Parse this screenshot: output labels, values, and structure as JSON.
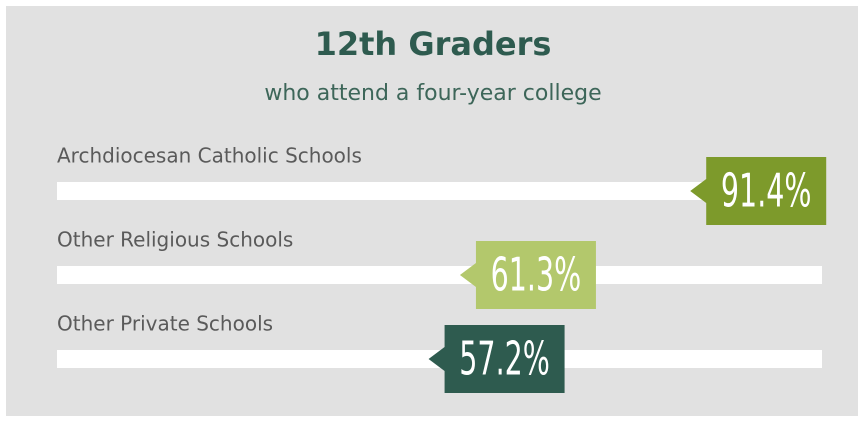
{
  "chart_data": {
    "type": "bar",
    "orientation": "horizontal",
    "title": "12th Graders",
    "subtitle": "who attend a four-year college",
    "categories": [
      "Archdiocesan Catholic Schools",
      "Other Religious Schools",
      "Other Private Schools"
    ],
    "values": [
      91.4,
      61.3,
      57.2
    ],
    "value_labels": [
      "91.4%",
      "61.3%",
      "57.2%"
    ],
    "colors": [
      "#7d9a2b",
      "#b3c86c",
      "#2e5b4f"
    ],
    "xlim": [
      0,
      100
    ]
  }
}
